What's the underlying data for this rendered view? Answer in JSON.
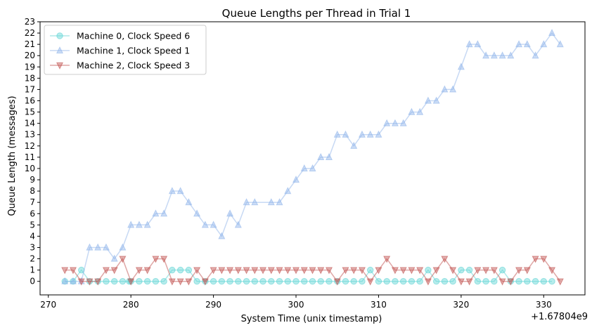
{
  "chart_data": {
    "type": "line",
    "title": "Queue Lengths per Thread in Trial 1",
    "xlabel": "System Time (unix timestamp)",
    "ylabel": "Queue Length (messages)",
    "offset_label": "+1.67804e9",
    "xlim": [
      269,
      335
    ],
    "ylim": [
      -1.2,
      23
    ],
    "xticks": [
      270,
      280,
      290,
      300,
      310,
      320,
      330
    ],
    "yticks": [
      0,
      1,
      2,
      3,
      4,
      5,
      6,
      7,
      8,
      9,
      10,
      11,
      12,
      13,
      14,
      15,
      16,
      17,
      18,
      19,
      20,
      21,
      22,
      23
    ],
    "legend_position": "upper left",
    "series": [
      {
        "name": "Machine 0, Clock Speed 6",
        "color": "#5fd4d4",
        "marker": "circle",
        "x": [
          272,
          273,
          274,
          275,
          276,
          277,
          278,
          279,
          279.8,
          280,
          281,
          282,
          283,
          284,
          285,
          286,
          287,
          288,
          289,
          290,
          291,
          292,
          293,
          294,
          295,
          296,
          297,
          298,
          299,
          300,
          301,
          302,
          303,
          304,
          305,
          306,
          307,
          308,
          309,
          310,
          311,
          312,
          313,
          314,
          315,
          316,
          317,
          318,
          319,
          320,
          321,
          322,
          323,
          324,
          325,
          326,
          327,
          328,
          329,
          330,
          331
        ],
        "values": [
          0,
          0,
          1,
          0,
          0,
          0,
          0,
          0,
          0,
          0,
          0,
          0,
          0,
          0,
          1,
          1,
          1,
          0,
          0,
          0,
          0,
          0,
          0,
          0,
          0,
          0,
          0,
          0,
          0,
          0,
          0,
          0,
          0,
          0,
          0,
          0,
          0,
          0,
          1,
          0,
          0,
          0,
          0,
          0,
          0,
          1,
          0,
          0,
          0,
          1,
          1,
          0,
          0,
          0,
          1,
          0,
          0,
          0,
          0,
          0,
          0
        ]
      },
      {
        "name": "Machine 1, Clock Speed 1",
        "color": "#8fb4ea",
        "marker": "triangle-up",
        "x": [
          272,
          273,
          274,
          275,
          276,
          277,
          278,
          279,
          280,
          281,
          282,
          283,
          284,
          285,
          286,
          287,
          288,
          289,
          290,
          291,
          292,
          293,
          294,
          295,
          297,
          298,
          299,
          300,
          301,
          302,
          303,
          304,
          305,
          306,
          307,
          308,
          309,
          310,
          311,
          312,
          313,
          314,
          315,
          316,
          317,
          318,
          319,
          320,
          321,
          322,
          323,
          324,
          325,
          326,
          327,
          328,
          329,
          330,
          331,
          332
        ],
        "values": [
          0,
          0,
          0,
          3,
          3,
          3,
          2,
          3,
          5,
          5,
          5,
          6,
          6,
          8,
          8,
          7,
          6,
          5,
          5,
          4,
          6,
          5,
          7,
          7,
          7,
          7,
          8,
          9,
          10,
          10,
          11,
          11,
          13,
          13,
          12,
          13,
          13,
          13,
          14,
          14,
          14,
          15,
          15,
          16,
          16,
          17,
          17,
          19,
          21,
          21,
          20,
          20,
          20,
          20,
          21,
          21,
          20,
          21,
          22,
          21
        ]
      },
      {
        "name": "Machine 2, Clock Speed 3",
        "color": "#c0504d",
        "marker": "triangle-down",
        "x": [
          272,
          273,
          274,
          275,
          276,
          277,
          278,
          279,
          280,
          281,
          282,
          283,
          284,
          285,
          286,
          287,
          288,
          289,
          290,
          291,
          292,
          293,
          294,
          295,
          296,
          297,
          298,
          299,
          300,
          301,
          302,
          303,
          304,
          305,
          306,
          307,
          308,
          309,
          310,
          311,
          312,
          313,
          314,
          315,
          316,
          317,
          318,
          319,
          320,
          321,
          322,
          323,
          324,
          325,
          326,
          327,
          328,
          329,
          330,
          331,
          332
        ],
        "values": [
          1,
          1,
          0,
          0,
          0,
          1,
          1,
          2,
          0,
          1,
          1,
          2,
          2,
          0,
          0,
          0,
          1,
          0,
          1,
          1,
          1,
          1,
          1,
          1,
          1,
          1,
          1,
          1,
          1,
          1,
          1,
          1,
          1,
          0,
          1,
          1,
          1,
          0,
          1,
          2,
          1,
          1,
          1,
          1,
          0,
          1,
          2,
          1,
          0,
          0,
          1,
          1,
          1,
          0,
          0,
          1,
          1,
          2,
          2,
          1,
          0
        ]
      }
    ]
  }
}
